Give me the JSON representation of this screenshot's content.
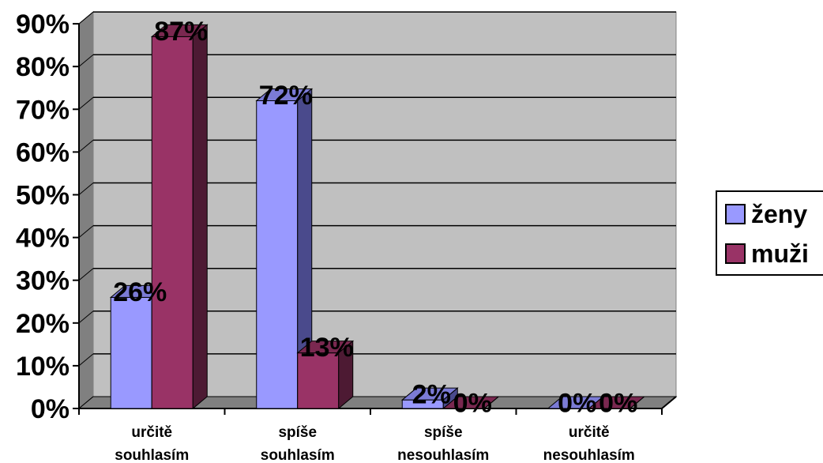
{
  "chart_data": {
    "type": "bar",
    "style": "3d-clustered-column",
    "categories": [
      [
        "určitě",
        "souhlasím"
      ],
      [
        "spíše",
        "souhlasím"
      ],
      [
        "spíše",
        "nesouhlasím"
      ],
      [
        "určitě",
        "nesouhlasím"
      ]
    ],
    "series": [
      {
        "name": "ženy",
        "values": [
          26,
          72,
          2,
          0
        ],
        "labels": [
          "26%",
          "72%",
          "2%",
          "0%"
        ],
        "color": "#9999ff",
        "top_color": "#7b7bd6",
        "side_color": "#4a4a8c"
      },
      {
        "name": "muži",
        "values": [
          87,
          13,
          0,
          0
        ],
        "labels": [
          "87%",
          "13%",
          "0%",
          "0%"
        ],
        "color": "#993366",
        "top_color": "#7a2850",
        "side_color": "#4d1a33"
      }
    ],
    "yticks": [
      "0%",
      "10%",
      "20%",
      "30%",
      "40%",
      "50%",
      "60%",
      "70%",
      "80%",
      "90%"
    ],
    "ylim": [
      0,
      90
    ],
    "unit": "%",
    "grid": true,
    "legend": "right",
    "plot_background": "#c0c0c0",
    "floor_color": "#808080"
  }
}
